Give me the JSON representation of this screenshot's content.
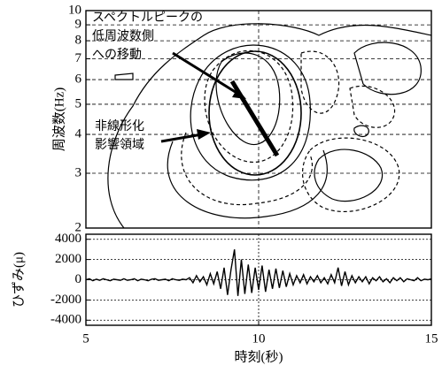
{
  "chart_data": [
    {
      "type": "contour",
      "ylabel": "周波数(Hz)",
      "xlim": [
        5,
        15
      ],
      "ylim": [
        2,
        10
      ],
      "log_y": true,
      "yticks": [
        2,
        3,
        4,
        5,
        6,
        7,
        8,
        9,
        10
      ],
      "xticks": [
        10
      ],
      "grid": true,
      "annotations": [
        [
          "スペクトルピークの",
          "低周波数側",
          "への移動"
        ],
        [
          "非線形化",
          "影響領域"
        ]
      ]
    },
    {
      "type": "line",
      "xlabel": "時刻(秒)",
      "ylabel": "ひずみ(μ)",
      "xlim": [
        5,
        15
      ],
      "ylim": [
        -4500,
        4500
      ],
      "xticks": [
        5,
        10,
        15
      ],
      "yticks": [
        4000,
        2000,
        0,
        -2000,
        -4000
      ],
      "grid": true,
      "x": [
        5,
        5.1,
        5.2,
        5.3,
        5.4,
        5.5,
        5.6,
        5.7,
        5.8,
        5.9,
        6,
        6.1,
        6.2,
        6.3,
        6.4,
        6.5,
        6.6,
        6.7,
        6.8,
        6.9,
        7,
        7.1,
        7.2,
        7.3,
        7.4,
        7.5,
        7.6,
        7.7,
        7.8,
        7.9,
        8,
        8.1,
        8.2,
        8.3,
        8.4,
        8.5,
        8.6,
        8.7,
        8.8,
        8.9,
        9,
        9.1,
        9.2,
        9.3,
        9.4,
        9.5,
        9.6,
        9.7,
        9.8,
        9.9,
        10,
        10.1,
        10.2,
        10.3,
        10.4,
        10.5,
        10.6,
        10.7,
        10.8,
        10.9,
        11,
        11.1,
        11.2,
        11.3,
        11.4,
        11.5,
        11.6,
        11.7,
        11.8,
        11.9,
        12,
        12.1,
        12.2,
        12.3,
        12.4,
        12.5,
        12.6,
        12.7,
        12.8,
        12.9,
        13,
        13.1,
        13.2,
        13.3,
        13.4,
        13.5,
        13.6,
        13.7,
        13.8,
        13.9,
        14,
        14.1,
        14.2,
        14.3,
        14.4,
        14.5,
        14.6,
        14.7,
        14.8,
        14.9,
        15
      ],
      "series": [
        {
          "color": "#000000",
          "values": [
            0,
            100,
            -100,
            50,
            -50,
            100,
            0,
            -100,
            50,
            0,
            -50,
            100,
            -50,
            0,
            100,
            -100,
            50,
            0,
            -100,
            50,
            100,
            -50,
            0,
            50,
            -100,
            100,
            0,
            -50,
            50,
            0,
            200,
            -300,
            400,
            -200,
            300,
            -500,
            600,
            -400,
            800,
            -900,
            1200,
            -1500,
            1000,
            3000,
            -1600,
            2000,
            -1400,
            1500,
            -1300,
            1200,
            -1000,
            1400,
            -1200,
            1000,
            -900,
            1100,
            -800,
            900,
            -700,
            600,
            -500,
            400,
            -300,
            500,
            -400,
            300,
            -200,
            400,
            -300,
            200,
            -400,
            500,
            -300,
            1200,
            -600,
            800,
            -500,
            400,
            -300,
            300,
            -200,
            300,
            -400,
            200,
            -100,
            300,
            -200,
            100,
            -300,
            200,
            -100,
            200,
            -200,
            100,
            0,
            -100,
            200,
            -100,
            50,
            0,
            100
          ]
        }
      ]
    }
  ]
}
